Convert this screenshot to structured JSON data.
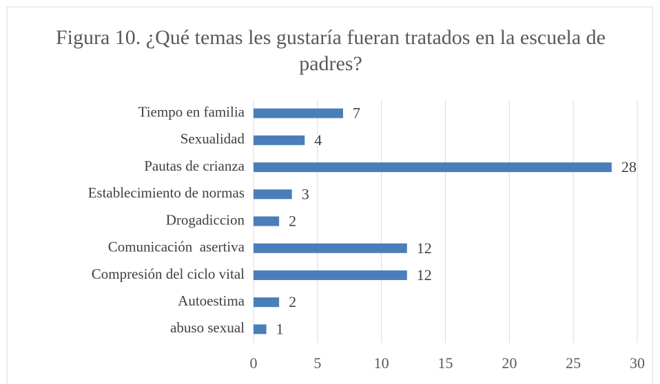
{
  "chart_data": {
    "type": "bar",
    "orientation": "horizontal",
    "title": "Figura 10. ¿Qué temas les gustaría fueran tratados en la escuela de padres?",
    "categories": [
      "Tiempo en familia",
      "Sexualidad",
      "Pautas de crianza",
      "Establecimiento de normas",
      "Drogadiccion",
      "Comunicación  asertiva",
      "Compresión del ciclo vital",
      "Autoestima",
      "abuso sexual"
    ],
    "values": [
      7,
      4,
      28,
      3,
      2,
      12,
      12,
      2,
      1
    ],
    "color": "#4a7ebb",
    "xlim": [
      0,
      30
    ],
    "xticks": [
      0,
      5,
      10,
      15,
      20,
      25,
      30
    ],
    "grid": true
  }
}
